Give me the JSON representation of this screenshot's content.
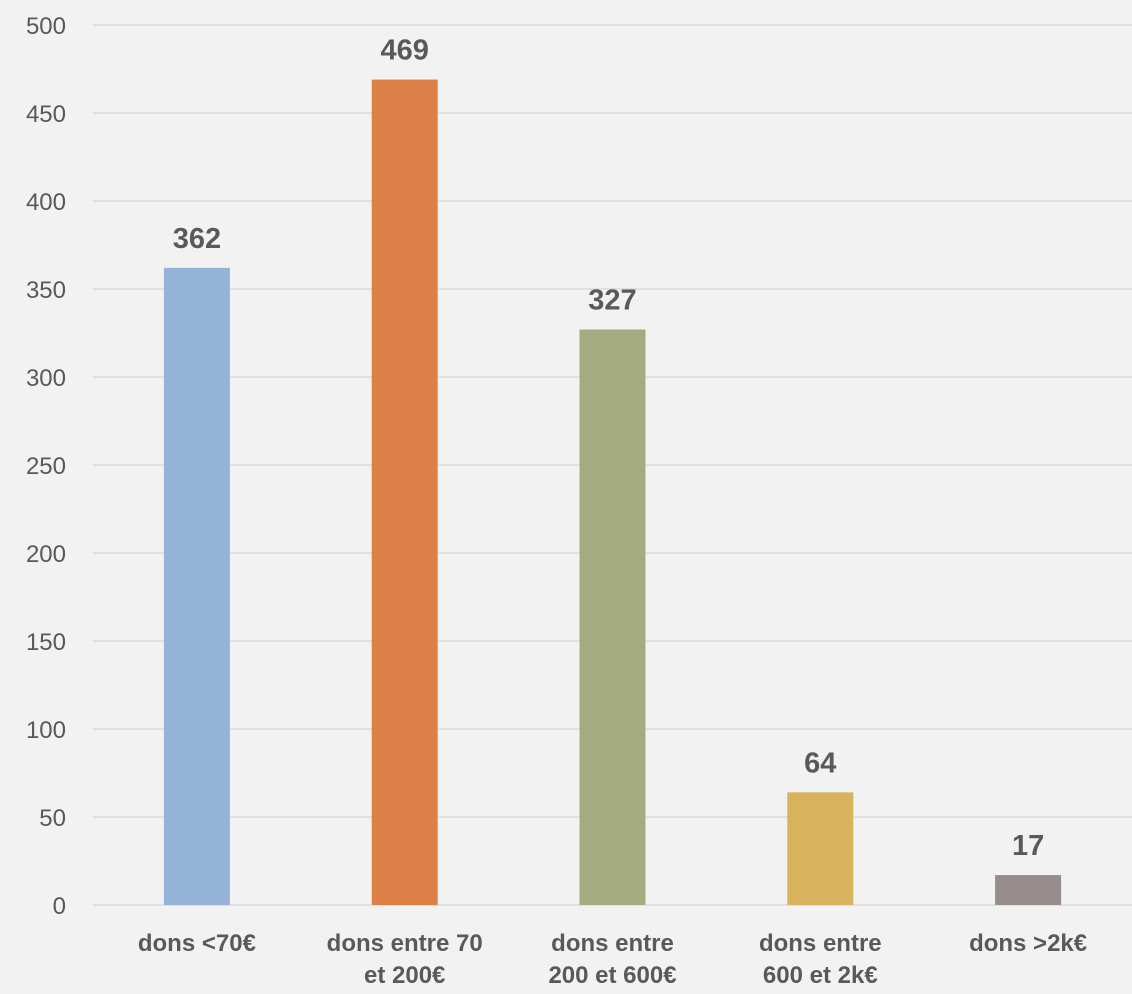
{
  "chart_data": {
    "type": "bar",
    "title": "",
    "xlabel": "",
    "ylabel": "",
    "ylim": [
      0,
      500
    ],
    "yticks": [
      0,
      50,
      100,
      150,
      200,
      250,
      300,
      350,
      400,
      450,
      500
    ],
    "grid": true,
    "legend": "none",
    "categories": [
      [
        "dons <70€"
      ],
      [
        "dons entre 70",
        "et 200€"
      ],
      [
        "dons entre",
        "200 et 600€"
      ],
      [
        "dons entre",
        "600 et 2k€"
      ],
      [
        "dons >2k€"
      ]
    ],
    "values": [
      362,
      469,
      327,
      64,
      17
    ],
    "colors": [
      "#95b3d7",
      "#dd8047",
      "#a5ab81",
      "#d8b25c",
      "#968c8c"
    ]
  }
}
